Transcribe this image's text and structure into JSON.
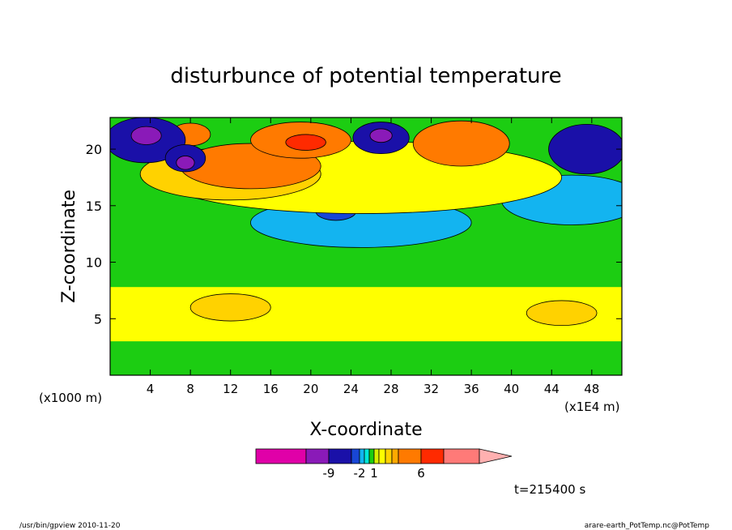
{
  "chart_data": {
    "type": "heatmap",
    "title": "disturbunce of potential temperature",
    "xlabel": "X-coordinate",
    "ylabel": "Z-coordinate",
    "x_unit_left": "(x1000 m)",
    "x_unit_right": "(x1E4 m)",
    "xlim": [
      0,
      51
    ],
    "ylim": [
      0,
      22.8
    ],
    "x_ticks": [
      "4",
      "8",
      "12",
      "16",
      "20",
      "24",
      "28",
      "32",
      "36",
      "40",
      "44",
      "48"
    ],
    "x_tick_values": [
      4,
      8,
      12,
      16,
      20,
      24,
      28,
      32,
      36,
      40,
      44,
      48
    ],
    "y_ticks": [
      "5",
      "10",
      "15",
      "20"
    ],
    "y_tick_values": [
      5,
      10,
      15,
      20
    ],
    "time_label": "t=215400 s",
    "colorbar": {
      "colors": [
        "#e000a8",
        "#8a1ab8",
        "#1a10a8",
        "#1846d6",
        "#13b4f0",
        "#00e8d8",
        "#1ccd12",
        "#d6f000",
        "#ffff00",
        "#ffd200",
        "#ffaa00",
        "#ff7a00",
        "#ff2a00",
        "#ff7a78",
        "#ffb0b0"
      ],
      "labels": [
        "-9",
        "-2",
        "1",
        "6"
      ]
    },
    "regions": [
      {
        "kind": "band",
        "color": "#1ccd12",
        "z": [
          0,
          22.8
        ]
      },
      {
        "kind": "band",
        "color": "#ffff00",
        "z": [
          3,
          7.8
        ]
      },
      {
        "kind": "blob",
        "color": "#ffd200",
        "x": 12,
        "z": 6,
        "rx": 4,
        "rz": 1.2
      },
      {
        "kind": "blob",
        "color": "#ffd200",
        "x": 45,
        "z": 5.5,
        "rx": 3.5,
        "rz": 1.1
      },
      {
        "kind": "blob",
        "color": "#13b4f0",
        "x": 25,
        "z": 13.5,
        "rx": 11,
        "rz": 2.2
      },
      {
        "kind": "blob",
        "color": "#13b4f0",
        "x": 46,
        "z": 15.5,
        "rx": 7,
        "rz": 2.2
      },
      {
        "kind": "blob",
        "color": "#1846d6",
        "x": 22.5,
        "z": 14.5,
        "rx": 2,
        "rz": 0.8
      },
      {
        "kind": "blob",
        "color": "#ffff00",
        "x": 25,
        "z": 17.5,
        "rx": 20,
        "rz": 3.2
      },
      {
        "kind": "blob",
        "color": "#ffd200",
        "x": 12,
        "z": 17.8,
        "rx": 9,
        "rz": 2.3
      },
      {
        "kind": "blob",
        "color": "#ff7a00",
        "x": 14,
        "z": 18.5,
        "rx": 7,
        "rz": 2.0
      },
      {
        "kind": "blob",
        "color": "#ff7a00",
        "x": 19,
        "z": 20.8,
        "rx": 5,
        "rz": 1.6
      },
      {
        "kind": "blob",
        "color": "#ff2a00",
        "x": 19.5,
        "z": 20.6,
        "rx": 2,
        "rz": 0.7
      },
      {
        "kind": "blob",
        "color": "#ff7a00",
        "x": 35,
        "z": 20.5,
        "rx": 4.8,
        "rz": 2.0
      },
      {
        "kind": "blob",
        "color": "#ff7a00",
        "x": 8,
        "z": 21.3,
        "rx": 2,
        "rz": 1.0
      },
      {
        "kind": "blob",
        "color": "#1a10a8",
        "x": 3.5,
        "z": 20.8,
        "rx": 4,
        "rz": 2.0
      },
      {
        "kind": "blob",
        "color": "#8a1ab8",
        "x": 3.6,
        "z": 21.2,
        "rx": 1.5,
        "rz": 0.8
      },
      {
        "kind": "blob",
        "color": "#1a10a8",
        "x": 7.5,
        "z": 19.2,
        "rx": 2,
        "rz": 1.2
      },
      {
        "kind": "blob",
        "color": "#8a1ab8",
        "x": 7.5,
        "z": 18.8,
        "rx": 0.9,
        "rz": 0.6
      },
      {
        "kind": "blob",
        "color": "#1a10a8",
        "x": 27,
        "z": 21,
        "rx": 2.8,
        "rz": 1.4
      },
      {
        "kind": "blob",
        "color": "#8a1ab8",
        "x": 27,
        "z": 21.2,
        "rx": 1.1,
        "rz": 0.6
      },
      {
        "kind": "blob",
        "color": "#1a10a8",
        "x": 47.5,
        "z": 20,
        "rx": 3.8,
        "rz": 2.2
      }
    ]
  },
  "footer": {
    "left": "/usr/bin/gpview   2010-11-20",
    "right": "arare-earth_PotTemp.nc@PotTemp"
  }
}
